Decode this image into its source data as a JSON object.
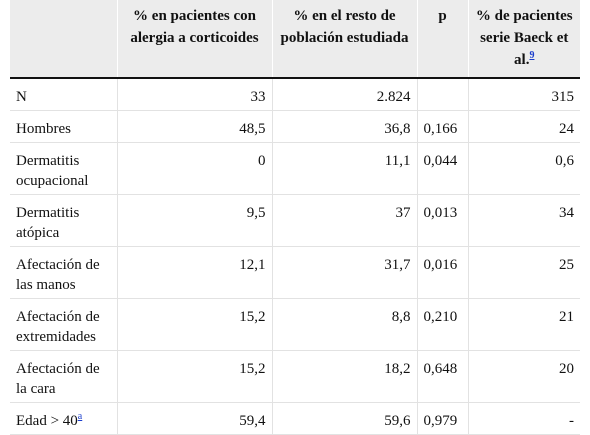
{
  "table": {
    "header": [
      "",
      "% en pacientes con alergia a corticoides",
      "% en el resto de población estudiada",
      "p",
      "% de pacientes serie Baeck et al."
    ],
    "header_ref": "9",
    "rows": [
      [
        "N",
        "33",
        "2.824",
        "",
        "315"
      ],
      [
        "Hombres",
        "48,5",
        "36,8",
        "0,166",
        "24"
      ],
      [
        "Dermatitis ocupacional",
        "0",
        "11,1",
        "0,044",
        "0,6"
      ],
      [
        "Dermatitis atópica",
        "9,5",
        "37",
        "0,013",
        "34"
      ],
      [
        "Afectación de las manos",
        "12,1",
        "31,7",
        "0,016",
        "25"
      ],
      [
        "Afectación de extremidades",
        "15,2",
        "8,8",
        "0,210",
        "21"
      ],
      [
        "Afectación de la cara",
        "15,2",
        "18,2",
        "0,648",
        "20"
      ],
      [
        "Edad > 40",
        "59,4",
        "59,6",
        "0,979",
        "-"
      ]
    ],
    "row_ref": {
      "7": "a"
    }
  }
}
